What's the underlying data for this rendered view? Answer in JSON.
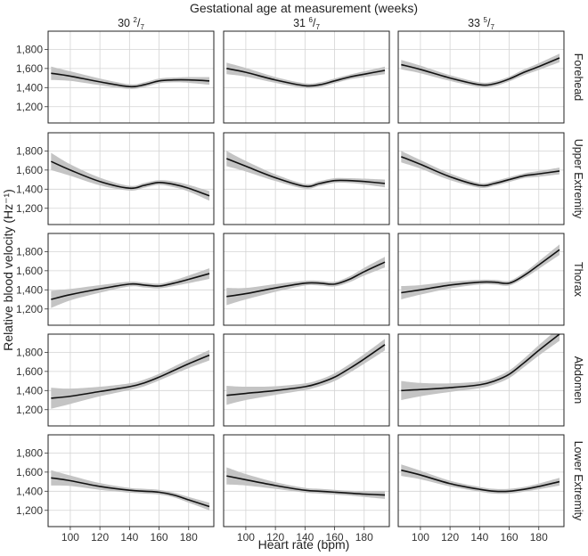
{
  "chart_data": {
    "type": "line",
    "title": "Gestational age at measurement (weeks)",
    "xlabel": "Heart rate (bpm)",
    "ylabel": "Relative blood velocity (Hz⁻¹)",
    "xlim": [
      85,
      197
    ],
    "ylim": [
      1030,
      1990
    ],
    "xticks": [
      100,
      120,
      140,
      160,
      180
    ],
    "yticks": [
      1200,
      1400,
      1600,
      1800
    ],
    "ytick_labels": [
      "1,200",
      "1,400",
      "1,600",
      "1,800"
    ],
    "grid": true,
    "columns": [
      {
        "whole": "30",
        "num": "2",
        "den": "7"
      },
      {
        "whole": "31",
        "num": "6",
        "den": "7"
      },
      {
        "whole": "33",
        "num": "5",
        "den": "7"
      }
    ],
    "rows": [
      "Forehead",
      "Upper Extremity",
      "Thorax",
      "Abdomen",
      "Lower Extremity"
    ],
    "panels": [
      [
        {
          "x": [
            87,
            100,
            120,
            140,
            150,
            160,
            170,
            180,
            194
          ],
          "y": [
            1550,
            1520,
            1460,
            1410,
            1430,
            1470,
            1480,
            1480,
            1470
          ],
          "band": [
            70,
            50,
            35,
            25,
            25,
            25,
            25,
            30,
            40
          ]
        },
        {
          "x": [
            87,
            100,
            120,
            140,
            150,
            160,
            170,
            180,
            194
          ],
          "y": [
            1690,
            1600,
            1480,
            1410,
            1440,
            1470,
            1450,
            1410,
            1330
          ],
          "band": [
            90,
            60,
            40,
            25,
            25,
            25,
            30,
            35,
            50
          ]
        },
        {
          "x": [
            87,
            100,
            120,
            140,
            150,
            160,
            170,
            180,
            194
          ],
          "y": [
            1300,
            1350,
            1410,
            1460,
            1450,
            1440,
            1470,
            1510,
            1570
          ],
          "band": [
            90,
            60,
            40,
            25,
            25,
            25,
            30,
            40,
            55
          ]
        },
        {
          "x": [
            87,
            100,
            120,
            140,
            150,
            160,
            170,
            180,
            194
          ],
          "y": [
            1320,
            1340,
            1390,
            1440,
            1480,
            1540,
            1610,
            1680,
            1770
          ],
          "band": [
            110,
            80,
            50,
            35,
            35,
            35,
            40,
            45,
            55
          ]
        },
        {
          "x": [
            87,
            100,
            120,
            140,
            150,
            160,
            170,
            180,
            194
          ],
          "y": [
            1540,
            1510,
            1450,
            1410,
            1400,
            1390,
            1360,
            1310,
            1240
          ],
          "band": [
            80,
            55,
            35,
            25,
            25,
            25,
            25,
            30,
            40
          ]
        }
      ],
      [
        {
          "x": [
            87,
            100,
            120,
            140,
            150,
            160,
            170,
            180,
            194
          ],
          "y": [
            1600,
            1560,
            1480,
            1420,
            1430,
            1470,
            1510,
            1540,
            1580
          ],
          "band": [
            60,
            45,
            30,
            25,
            25,
            25,
            25,
            30,
            40
          ]
        },
        {
          "x": [
            87,
            100,
            120,
            140,
            150,
            160,
            170,
            180,
            194
          ],
          "y": [
            1720,
            1640,
            1520,
            1430,
            1460,
            1490,
            1490,
            1480,
            1460
          ],
          "band": [
            80,
            55,
            35,
            25,
            25,
            25,
            25,
            30,
            40
          ]
        },
        {
          "x": [
            87,
            100,
            120,
            140,
            150,
            160,
            170,
            180,
            194
          ],
          "y": [
            1330,
            1360,
            1420,
            1470,
            1470,
            1460,
            1510,
            1590,
            1690
          ],
          "band": [
            90,
            60,
            40,
            25,
            25,
            25,
            30,
            40,
            55
          ]
        },
        {
          "x": [
            87,
            100,
            120,
            140,
            150,
            160,
            170,
            180,
            194
          ],
          "y": [
            1350,
            1370,
            1400,
            1440,
            1480,
            1540,
            1630,
            1730,
            1880
          ],
          "band": [
            100,
            70,
            45,
            35,
            35,
            40,
            45,
            50,
            60
          ]
        },
        {
          "x": [
            87,
            100,
            120,
            140,
            150,
            160,
            170,
            180,
            194
          ],
          "y": [
            1560,
            1520,
            1460,
            1410,
            1400,
            1390,
            1380,
            1370,
            1360
          ],
          "band": [
            90,
            60,
            35,
            25,
            25,
            25,
            25,
            30,
            40
          ]
        }
      ],
      [
        {
          "x": [
            87,
            100,
            120,
            140,
            150,
            160,
            170,
            180,
            194
          ],
          "y": [
            1640,
            1590,
            1500,
            1430,
            1440,
            1490,
            1560,
            1620,
            1710
          ],
          "band": [
            50,
            40,
            30,
            25,
            25,
            25,
            30,
            35,
            45
          ]
        },
        {
          "x": [
            87,
            100,
            120,
            140,
            150,
            160,
            170,
            180,
            194
          ],
          "y": [
            1740,
            1660,
            1530,
            1440,
            1460,
            1500,
            1540,
            1560,
            1590
          ],
          "band": [
            60,
            45,
            35,
            25,
            25,
            25,
            25,
            30,
            35
          ]
        },
        {
          "x": [
            87,
            100,
            120,
            140,
            150,
            160,
            170,
            180,
            194
          ],
          "y": [
            1370,
            1400,
            1450,
            1480,
            1480,
            1470,
            1550,
            1660,
            1820
          ],
          "band": [
            70,
            50,
            35,
            25,
            25,
            25,
            30,
            40,
            55
          ]
        },
        {
          "x": [
            87,
            100,
            120,
            140,
            150,
            160,
            170,
            180,
            194
          ],
          "y": [
            1400,
            1410,
            1430,
            1460,
            1500,
            1570,
            1690,
            1820,
            1990
          ],
          "band": [
            100,
            70,
            45,
            35,
            35,
            40,
            45,
            55,
            70
          ]
        },
        {
          "x": [
            87,
            100,
            120,
            140,
            150,
            160,
            170,
            180,
            194
          ],
          "y": [
            1620,
            1570,
            1480,
            1420,
            1400,
            1400,
            1420,
            1450,
            1500
          ],
          "band": [
            60,
            45,
            30,
            25,
            25,
            25,
            25,
            30,
            40
          ]
        }
      ]
    ]
  }
}
